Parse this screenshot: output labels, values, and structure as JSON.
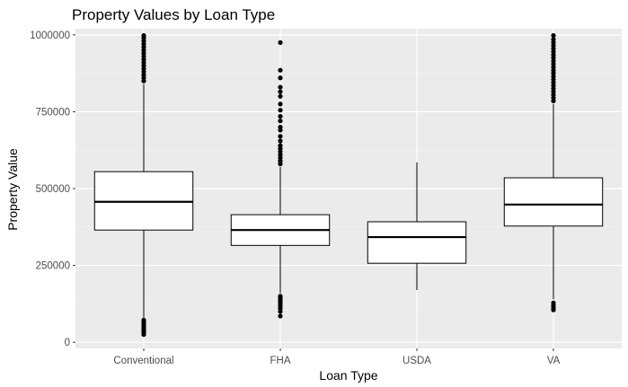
{
  "chart_data": {
    "type": "boxplot",
    "title": "Property Values by Loan Type",
    "xlabel": "Loan Type",
    "ylabel": "Property Value",
    "ylim": [
      -20000,
      1020000
    ],
    "y_ticks": [
      0,
      250000,
      500000,
      750000,
      1000000
    ],
    "y_tick_labels": [
      "0",
      "250000",
      "500000",
      "750000",
      "1000000"
    ],
    "grid": true,
    "background": "#ebebeb",
    "grid_major_color": "#ffffff",
    "categories": [
      "Conventional",
      "FHA",
      "USDA",
      "VA"
    ],
    "boxes": [
      {
        "category": "Conventional",
        "whisker_low": 80000,
        "q1": 365000,
        "median": 457000,
        "q3": 555000,
        "whisker_high": 840000,
        "outliers": [
          25000,
          32000,
          38000,
          45000,
          52000,
          58000,
          65000,
          72000,
          850000,
          860000,
          870000,
          880000,
          890000,
          900000,
          910000,
          920000,
          930000,
          940000,
          950000,
          960000,
          970000,
          980000,
          990000,
          998000
        ]
      },
      {
        "category": "FHA",
        "whisker_low": 160000,
        "q1": 315000,
        "median": 365000,
        "q3": 415000,
        "whisker_high": 570000,
        "outliers": [
          85000,
          100000,
          110000,
          118000,
          125000,
          132000,
          138000,
          145000,
          150000,
          580000,
          590000,
          600000,
          610000,
          620000,
          630000,
          640000,
          655000,
          670000,
          690000,
          700000,
          720000,
          735000,
          755000,
          775000,
          800000,
          815000,
          830000,
          860000,
          885000,
          975000
        ]
      },
      {
        "category": "USDA",
        "whisker_low": 170000,
        "q1": 257000,
        "median": 342000,
        "q3": 392000,
        "whisker_high": 585000,
        "outliers": []
      },
      {
        "category": "VA",
        "whisker_low": 140000,
        "q1": 378000,
        "median": 448000,
        "q3": 535000,
        "whisker_high": 775000,
        "outliers": [
          105000,
          112000,
          120000,
          128000,
          785000,
          795000,
          805000,
          815000,
          825000,
          835000,
          845000,
          855000,
          865000,
          875000,
          885000,
          895000,
          905000,
          915000,
          925000,
          935000,
          945000,
          955000,
          965000,
          975000,
          985000,
          998000
        ]
      }
    ]
  }
}
